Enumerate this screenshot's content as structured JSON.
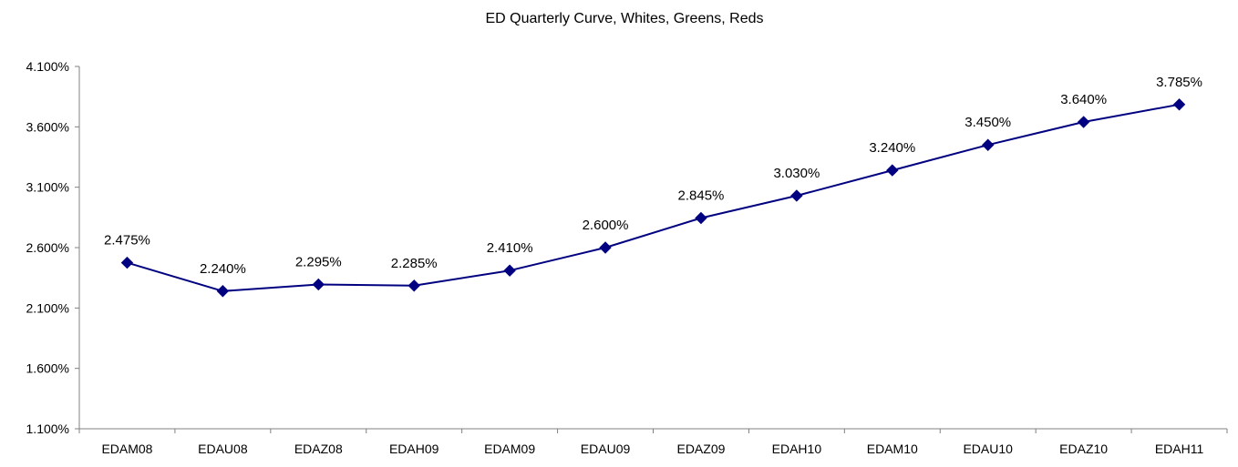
{
  "chart_data": {
    "type": "line",
    "title": "ED Quarterly Curve, Whites, Greens, Reds",
    "xlabel": "",
    "ylabel": "",
    "categories": [
      "EDAM08",
      "EDAU08",
      "EDAZ08",
      "EDAH09",
      "EDAM09",
      "EDAU09",
      "EDAZ09",
      "EDAH10",
      "EDAM10",
      "EDAU10",
      "EDAZ10",
      "EDAH11"
    ],
    "series": [
      {
        "values": [
          2.475,
          2.24,
          2.295,
          2.285,
          2.41,
          2.6,
          2.845,
          3.03,
          3.24,
          3.45,
          3.64,
          3.785
        ],
        "data_labels": [
          "2.475%",
          "2.240%",
          "2.295%",
          "2.285%",
          "2.410%",
          "2.600%",
          "2.845%",
          "3.030%",
          "3.240%",
          "3.450%",
          "3.640%",
          "3.785%"
        ],
        "color": "#000080",
        "marker": "diamond"
      }
    ],
    "ylim": [
      1.1,
      4.1
    ],
    "y_ticks": [
      1.1,
      1.6,
      2.1,
      2.6,
      3.1,
      3.6,
      4.1
    ],
    "y_tick_labels": [
      "1.100%",
      "1.600%",
      "2.100%",
      "2.600%",
      "3.100%",
      "3.600%",
      "4.100%"
    ],
    "grid": false,
    "legend": "none",
    "axis_color": "#808080"
  }
}
